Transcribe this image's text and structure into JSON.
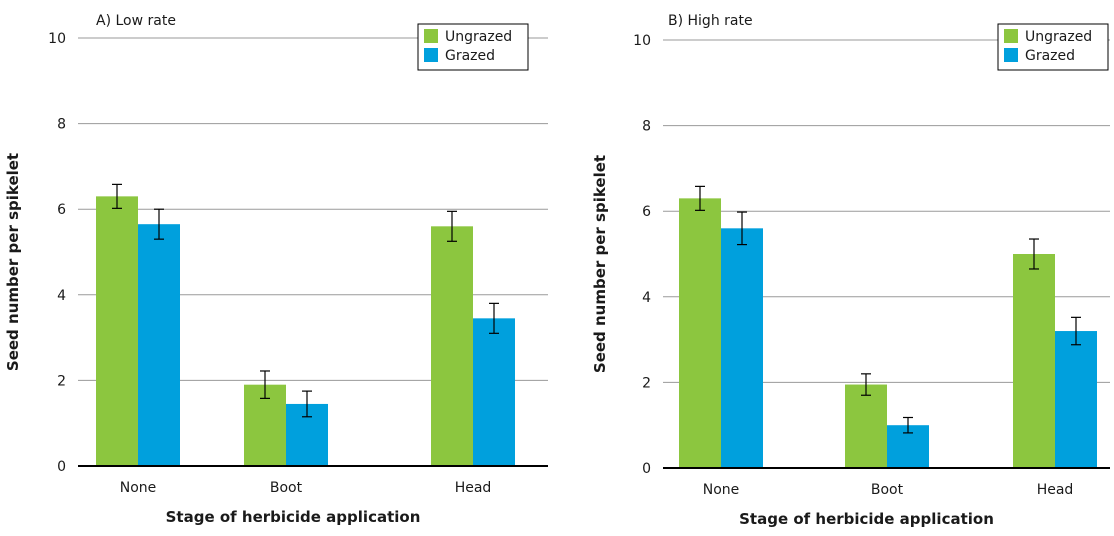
{
  "colors": {
    "ungrazed": "#8cc63f",
    "grazed": "#00a0dd",
    "grid": "#9a9a9a",
    "axis": "#000000"
  },
  "chart_data": [
    {
      "type": "bar",
      "title": "A) Low rate",
      "xlabel": "Stage of herbicide application",
      "ylabel": "Seed number per spikelet",
      "categories": [
        "None",
        "Boot",
        "Head"
      ],
      "ylim": [
        0,
        10
      ],
      "yticks": [
        "0",
        "2",
        "4",
        "6",
        "8",
        "10"
      ],
      "grid": true,
      "legend_position": "top-right",
      "series": [
        {
          "name": "Ungrazed",
          "color": "#8cc63f",
          "values": [
            6.3,
            1.9,
            5.6
          ],
          "errors": [
            0.28,
            0.32,
            0.35
          ]
        },
        {
          "name": "Grazed",
          "color": "#00a0dd",
          "values": [
            5.65,
            1.45,
            3.45
          ],
          "errors": [
            0.35,
            0.3,
            0.35
          ]
        }
      ]
    },
    {
      "type": "bar",
      "title": "B) High rate",
      "xlabel": "Stage of herbicide application",
      "ylabel": "Seed number per spikelet",
      "categories": [
        "None",
        "Boot",
        "Head"
      ],
      "ylim": [
        0,
        10
      ],
      "yticks": [
        "0",
        "2",
        "4",
        "6",
        "8",
        "10"
      ],
      "grid": true,
      "legend_position": "top-right",
      "series": [
        {
          "name": "Ungrazed",
          "color": "#8cc63f",
          "values": [
            6.3,
            1.95,
            5.0
          ],
          "errors": [
            0.28,
            0.25,
            0.35
          ]
        },
        {
          "name": "Grazed",
          "color": "#00a0dd",
          "values": [
            5.6,
            1.0,
            3.2
          ],
          "errors": [
            0.38,
            0.18,
            0.32
          ]
        }
      ]
    }
  ]
}
